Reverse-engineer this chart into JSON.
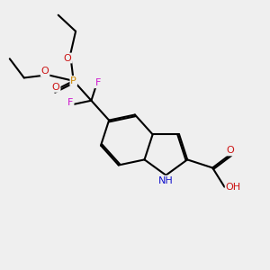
{
  "bg_color": "#efefef",
  "bond_color": "#000000",
  "bond_width": 1.5,
  "dbo": 0.018,
  "colors": {
    "N": "#1414cc",
    "O": "#cc1414",
    "F": "#cc14cc",
    "P": "#cc8800"
  },
  "font_size": 8.0,
  "font_size_small": 7.5
}
